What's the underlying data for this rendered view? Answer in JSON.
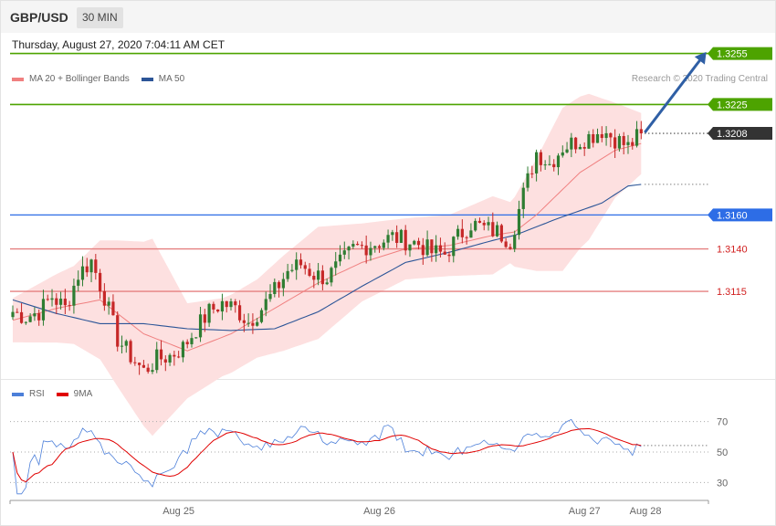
{
  "header": {
    "symbol": "GBP/USD",
    "timeframe": "30 MIN"
  },
  "datetime": "Thursday, August 27, 2020 7:04:11 AM CET",
  "legend": {
    "main": [
      {
        "label": "MA 20 + Bollinger Bands",
        "color": "#f08080"
      },
      {
        "label": "MA 50",
        "color": "#2c5597"
      }
    ],
    "credit": "Research © 2020 Trading Central",
    "rsi": [
      {
        "label": "RSI",
        "color": "#4c7fd9"
      },
      {
        "label": "9MA",
        "color": "#e00000"
      }
    ]
  },
  "colors": {
    "up": "#2e7d32",
    "down": "#c62828",
    "band": "#fde0e0",
    "ma20": "#f08080",
    "ma50": "#2c5597",
    "resistance": "#4da300",
    "support_blue": "#2d6de6",
    "support_red": "#e58080",
    "arrow": "#2f5fa5"
  },
  "chart_data": [
    {
      "type": "candlestick",
      "title": "",
      "x": {
        "tick_labels": [
          "Aug 25",
          "Aug 26",
          "Aug 27",
          "Aug 28"
        ]
      },
      "y": {
        "ylim": [
          1.305,
          1.3265
        ],
        "axis_visible": false
      },
      "price_levels": [
        {
          "value": 1.3255,
          "label": "1.3255",
          "style": "resistance"
        },
        {
          "value": 1.3225,
          "label": "1.3225",
          "style": "resistance"
        },
        {
          "value": 1.3208,
          "label": "1.3208",
          "style": "current"
        },
        {
          "value": 1.316,
          "label": "1.3160",
          "style": "support_blue"
        },
        {
          "value": 1.314,
          "label": "1.3140",
          "style": "support_red"
        },
        {
          "value": 1.3115,
          "label": "1.3115",
          "style": "support_red"
        }
      ],
      "projection": {
        "from": 1.3208,
        "to": 1.3255
      },
      "close_waypoints": [
        [
          0,
          1.3103
        ],
        [
          3,
          1.31
        ],
        [
          6,
          1.3103
        ],
        [
          9,
          1.3112
        ],
        [
          12,
          1.3105
        ],
        [
          15,
          1.3125
        ],
        [
          18,
          1.3133
        ],
        [
          21,
          1.3112
        ],
        [
          24,
          1.3087
        ],
        [
          27,
          1.3077
        ],
        [
          30,
          1.3068
        ],
        [
          33,
          1.3075
        ],
        [
          36,
          1.3077
        ],
        [
          39,
          1.3082
        ],
        [
          42,
          1.3093
        ],
        [
          45,
          1.3103
        ],
        [
          48,
          1.3108
        ],
        [
          51,
          1.3105
        ],
        [
          54,
          1.3097
        ],
        [
          57,
          1.3105
        ],
        [
          60,
          1.3115
        ],
        [
          63,
          1.3127
        ],
        [
          66,
          1.3131
        ],
        [
          69,
          1.3125
        ],
        [
          72,
          1.3123
        ],
        [
          75,
          1.3131
        ],
        [
          78,
          1.314
        ],
        [
          81,
          1.3142
        ],
        [
          84,
          1.3144
        ],
        [
          87,
          1.3147
        ],
        [
          90,
          1.3145
        ],
        [
          93,
          1.3143
        ],
        [
          96,
          1.3138
        ],
        [
          99,
          1.3137
        ],
        [
          102,
          1.3147
        ],
        [
          105,
          1.3155
        ],
        [
          108,
          1.3152
        ],
        [
          111,
          1.315
        ],
        [
          114,
          1.3145
        ],
        [
          117,
          1.3172
        ],
        [
          120,
          1.3197
        ],
        [
          123,
          1.319
        ],
        [
          126,
          1.32
        ],
        [
          129,
          1.3203
        ],
        [
          132,
          1.3206
        ],
        [
          135,
          1.321
        ],
        [
          138,
          1.3205
        ],
        [
          141,
          1.32
        ],
        [
          144,
          1.3208
        ]
      ],
      "ma20_waypoints": [
        [
          0,
          1.3098
        ],
        [
          10,
          1.3105
        ],
        [
          20,
          1.311
        ],
        [
          30,
          1.309
        ],
        [
          40,
          1.308
        ],
        [
          50,
          1.309
        ],
        [
          60,
          1.3105
        ],
        [
          70,
          1.312
        ],
        [
          80,
          1.3132
        ],
        [
          90,
          1.314
        ],
        [
          100,
          1.3142
        ],
        [
          110,
          1.3148
        ],
        [
          115,
          1.315
        ],
        [
          120,
          1.316
        ],
        [
          130,
          1.3185
        ],
        [
          138,
          1.3198
        ],
        [
          144,
          1.3202
        ]
      ],
      "ma50_waypoints": [
        [
          0,
          1.311
        ],
        [
          10,
          1.3102
        ],
        [
          20,
          1.3096
        ],
        [
          30,
          1.3096
        ],
        [
          40,
          1.3093
        ],
        [
          50,
          1.3092
        ],
        [
          60,
          1.3093
        ],
        [
          70,
          1.3103
        ],
        [
          80,
          1.3118
        ],
        [
          90,
          1.3132
        ],
        [
          100,
          1.3138
        ],
        [
          110,
          1.3145
        ],
        [
          115,
          1.3148
        ],
        [
          125,
          1.3158
        ],
        [
          135,
          1.3167
        ],
        [
          141,
          1.3177
        ],
        [
          144,
          1.3178
        ]
      ],
      "band_halfwidth_waypoints": [
        [
          0,
          1
        ],
        [
          14,
          3
        ],
        [
          24,
          7
        ],
        [
          32,
          10
        ],
        [
          40,
          4
        ],
        [
          48,
          3
        ],
        [
          56,
          3
        ],
        [
          62,
          4
        ],
        [
          70,
          5
        ],
        [
          80,
          3
        ],
        [
          90,
          2
        ],
        [
          100,
          2
        ],
        [
          110,
          3
        ],
        [
          114,
          2
        ],
        [
          120,
          5
        ],
        [
          126,
          8
        ],
        [
          132,
          7
        ],
        [
          138,
          4
        ],
        [
          144,
          2
        ]
      ]
    },
    {
      "type": "line",
      "title": "",
      "series": [
        {
          "name": "RSI",
          "color": "#4c7fd9"
        },
        {
          "name": "9MA",
          "color": "#e00000"
        }
      ],
      "x": {
        "tick_labels": [
          "Aug 25",
          "Aug 26",
          "Aug 27",
          "Aug 28"
        ]
      },
      "y": {
        "ylim": [
          20,
          80
        ],
        "ticks": [
          30,
          50,
          70
        ]
      }
    }
  ]
}
